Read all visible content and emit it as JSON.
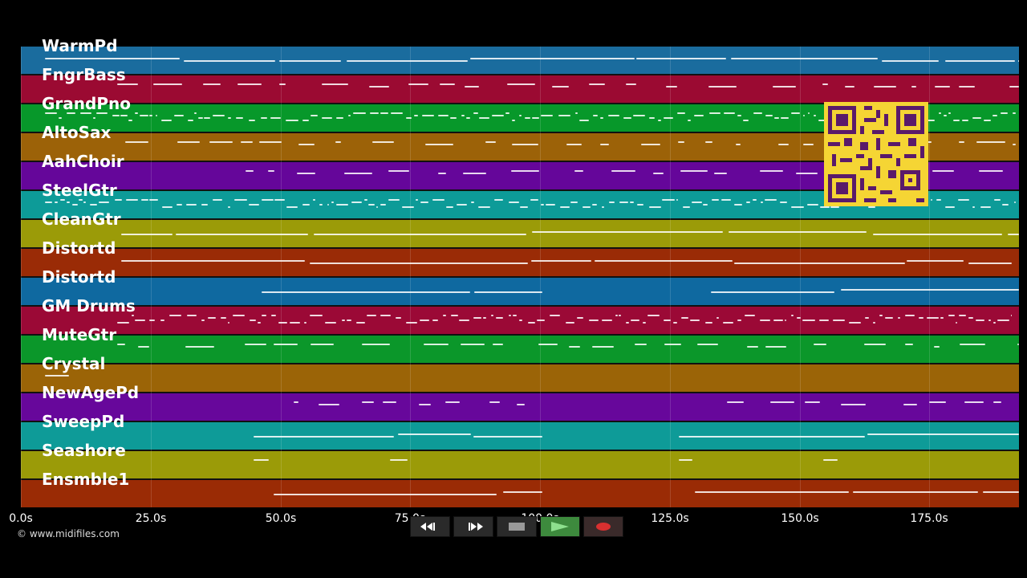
{
  "tracks": [
    {
      "name": "WarmPd",
      "color": "#1a6c9e"
    },
    {
      "name": "FngrBass",
      "color": "#9b0a32"
    },
    {
      "name": "GrandPno",
      "color": "#07982a"
    },
    {
      "name": "AltoSax",
      "color": "#9c6208"
    },
    {
      "name": "AahChoir",
      "color": "#65069a"
    },
    {
      "name": "SteelGtr",
      "color": "#0d9b98"
    },
    {
      "name": "CleanGtr",
      "color": "#9b9b08"
    },
    {
      "name": "Distortd",
      "color": "#9a2b06"
    },
    {
      "name": "Distortd",
      "color": "#0f69a0"
    },
    {
      "name": "GM Drums",
      "color": "#9b0936"
    },
    {
      "name": "MuteGtr",
      "color": "#0b972a"
    },
    {
      "name": "Crystal",
      "color": "#9b6407"
    },
    {
      "name": "NewAgePd",
      "color": "#67079b"
    },
    {
      "name": "SweepPd",
      "color": "#0e9b98"
    },
    {
      "name": "Seashore",
      "color": "#9b9b08"
    },
    {
      "name": "Ensmble1",
      "color": "#9a2b05"
    }
  ],
  "timeline": {
    "ticks": [
      "0.0s",
      "25.0s",
      "50.0s",
      "75.0s",
      "100.0s",
      "125.0s",
      "150.0s",
      "175.0s"
    ]
  },
  "copyright": "© www.midifiles.com",
  "transport": {
    "rewind": "rewind-icon",
    "fast_forward": "fast-forward-icon",
    "stop": "stop-icon",
    "play": "play-icon",
    "record": "record-icon"
  }
}
